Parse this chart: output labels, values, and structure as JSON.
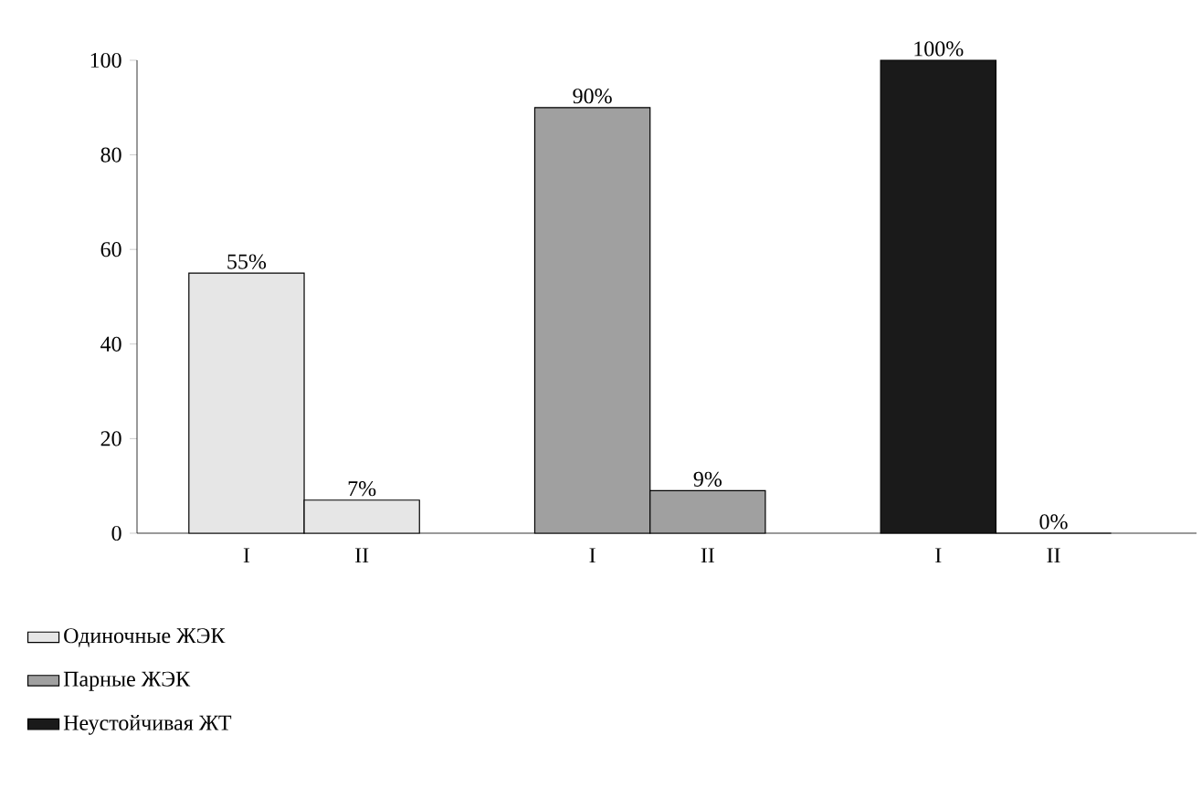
{
  "chart_data": {
    "type": "bar",
    "categories": [
      "I",
      "II",
      null,
      "I",
      "II",
      null,
      "I",
      "II"
    ],
    "series": [
      {
        "name": "Одиночные ЖЭК",
        "color": "#e6e6e6",
        "values": [
          55,
          7,
          null,
          null,
          null,
          null,
          null,
          null
        ],
        "value_labels": [
          "55%",
          "7%",
          null,
          null,
          null,
          null,
          null,
          null
        ]
      },
      {
        "name": "Парные ЖЭК",
        "color": "#a0a0a0",
        "values": [
          null,
          null,
          null,
          90,
          9,
          null,
          null,
          null
        ],
        "value_labels": [
          null,
          null,
          null,
          "90%",
          "9%",
          null,
          null,
          null
        ]
      },
      {
        "name": "Неустойчивая ЖТ",
        "color": "#1a1a1a",
        "values": [
          null,
          null,
          null,
          null,
          null,
          null,
          100,
          0
        ],
        "value_labels": [
          null,
          null,
          null,
          null,
          null,
          null,
          "100%",
          "0%"
        ]
      }
    ],
    "ylim": [
      0,
      100
    ],
    "yticks": [
      0,
      20,
      40,
      60,
      80,
      100
    ],
    "legend": "bottom left"
  }
}
